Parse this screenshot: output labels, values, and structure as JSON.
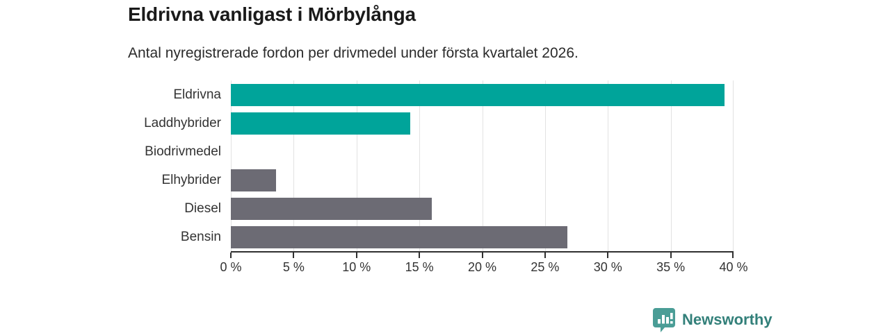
{
  "header": {
    "title": "Eldrivna vanligast i Mörbylånga",
    "subtitle": "Antal nyregistrerade fordon per drivmedel under första kvartalet 2026."
  },
  "chart_data": {
    "type": "bar",
    "orientation": "horizontal",
    "title": "Eldrivna vanligast i Mörbylånga",
    "subtitle": "Antal nyregistrerade fordon per drivmedel under första kvartalet 2026.",
    "categories": [
      "Eldrivna",
      "Laddhybrider",
      "Biodrivmedel",
      "Elhybrider",
      "Diesel",
      "Bensin"
    ],
    "values": [
      39.3,
      14.3,
      0,
      3.6,
      16.0,
      26.8
    ],
    "unit": "%",
    "bar_colors": [
      "#00a49a",
      "#00a49a",
      "#6c6b74",
      "#6c6b74",
      "#6c6b74",
      "#6c6b74"
    ],
    "xlabel": "",
    "ylabel": "",
    "xlim": [
      0,
      40
    ],
    "x_ticks": [
      0,
      5,
      10,
      15,
      20,
      25,
      30,
      35,
      40
    ],
    "x_tick_labels": [
      "0 %",
      "5 %",
      "10 %",
      "15 %",
      "20 %",
      "25 %",
      "30 %",
      "35 %",
      "40 %"
    ],
    "grid": true,
    "legend": false
  },
  "footer": {
    "brand": "Newsworthy"
  },
  "colors": {
    "teal_bar": "#00a49a",
    "gray_bar": "#6c6b74",
    "axis": "#2f2f2f",
    "gridline": "#e2e2e2",
    "brand_text": "#33807a",
    "brand_icon": "#4a9d96"
  }
}
